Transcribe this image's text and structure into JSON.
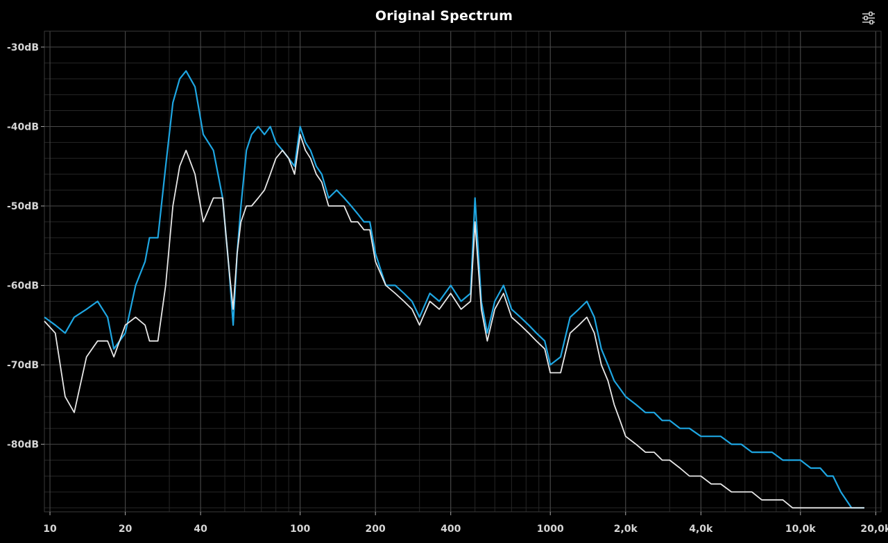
{
  "header": {
    "title": "Original Spectrum",
    "settings_icon": "sliders-icon"
  },
  "colors": {
    "background": "#000000",
    "grid": "#4a4a4a",
    "grid_minor": "#262626",
    "series_blue": "#1ea6e2",
    "series_white": "#e8e8e8"
  },
  "chart_data": {
    "type": "line",
    "title": "Original Spectrum",
    "xlabel": "",
    "ylabel": "",
    "x_scale": "log",
    "xlim": [
      9.5,
      21000
    ],
    "ylim": [
      -88.5,
      -28
    ],
    "grid": true,
    "y_ticks": [
      {
        "value": -30,
        "label": "-30dB"
      },
      {
        "value": -40,
        "label": "-40dB"
      },
      {
        "value": -50,
        "label": "-50dB"
      },
      {
        "value": -60,
        "label": "-60dB"
      },
      {
        "value": -70,
        "label": "-70dB"
      },
      {
        "value": -80,
        "label": "-80dB"
      }
    ],
    "x_ticks": [
      {
        "value": 10,
        "label": "10"
      },
      {
        "value": 20,
        "label": "20"
      },
      {
        "value": 40,
        "label": "40"
      },
      {
        "value": 100,
        "label": "100"
      },
      {
        "value": 200,
        "label": "200"
      },
      {
        "value": 400,
        "label": "400"
      },
      {
        "value": 1000,
        "label": "1000"
      },
      {
        "value": 2000,
        "label": "2,0k"
      },
      {
        "value": 4000,
        "label": "4,0k"
      },
      {
        "value": 10000,
        "label": "10,0k"
      },
      {
        "value": 20000,
        "label": "20,0k"
      }
    ],
    "series": [
      {
        "color": "#1ea6e2",
        "x": [
          9.5,
          10.5,
          11.5,
          12.5,
          14,
          15.5,
          17,
          18,
          20,
          22,
          24,
          25,
          27,
          29,
          31,
          33,
          35,
          38,
          41,
          45,
          49,
          52,
          54,
          56,
          58,
          61,
          64,
          68,
          72,
          76,
          80,
          85,
          90,
          95,
          100,
          105,
          110,
          116,
          122,
          130,
          140,
          150,
          160,
          170,
          180,
          190,
          200,
          220,
          240,
          260,
          280,
          300,
          330,
          360,
          400,
          440,
          480,
          500,
          530,
          560,
          600,
          650,
          700,
          760,
          820,
          880,
          950,
          1000,
          1100,
          1200,
          1300,
          1400,
          1500,
          1600,
          1700,
          1800,
          1900,
          2000,
          2200,
          2400,
          2600,
          2800,
          3000,
          3300,
          3600,
          4000,
          4400,
          4800,
          5300,
          5800,
          6400,
          7000,
          7700,
          8500,
          9300,
          10000,
          11000,
          12000,
          12800,
          13500,
          14500,
          16000,
          18000
        ],
        "y": [
          -64,
          -65,
          -66,
          -64,
          -63,
          -62,
          -64,
          -68,
          -66,
          -60,
          -57,
          -54,
          -54,
          -45,
          -37,
          -34,
          -33,
          -35,
          -41,
          -43,
          -49,
          -58,
          -65,
          -56,
          -50,
          -43,
          -41,
          -40,
          -41,
          -40,
          -42,
          -43,
          -44,
          -45,
          -40,
          -42,
          -43,
          -45,
          -46,
          -49,
          -48,
          -49,
          -50,
          -51,
          -52,
          -52,
          -56,
          -60,
          -60,
          -61,
          -62,
          -64,
          -61,
          -62,
          -60,
          -62,
          -61,
          -49,
          -62,
          -66,
          -62,
          -60,
          -63,
          -64,
          -65,
          -66,
          -67,
          -70,
          -69,
          -64,
          -63,
          -62,
          -64,
          -68,
          -70,
          -72,
          -73,
          -74,
          -75,
          -76,
          -76,
          -77,
          -77,
          -78,
          -78,
          -79,
          -79,
          -79,
          -80,
          -80,
          -81,
          -81,
          -81,
          -82,
          -82,
          -82,
          -83,
          -83,
          -84,
          -84,
          -86,
          -88,
          -88
        ]
      },
      {
        "color": "#e8e8e8",
        "x": [
          9.5,
          10.5,
          11.5,
          12.5,
          14,
          15.5,
          17,
          18,
          20,
          22,
          24,
          25,
          27,
          29,
          31,
          33,
          35,
          38,
          41,
          45,
          49,
          52,
          54,
          56,
          58,
          61,
          64,
          68,
          72,
          76,
          80,
          85,
          90,
          95,
          100,
          105,
          110,
          116,
          122,
          130,
          140,
          150,
          160,
          170,
          180,
          190,
          200,
          220,
          240,
          260,
          280,
          300,
          330,
          360,
          400,
          440,
          480,
          500,
          530,
          560,
          600,
          650,
          700,
          760,
          820,
          880,
          950,
          1000,
          1100,
          1200,
          1300,
          1400,
          1500,
          1600,
          1700,
          1800,
          1900,
          2000,
          2200,
          2400,
          2600,
          2800,
          3000,
          3300,
          3600,
          4000,
          4400,
          4800,
          5300,
          5800,
          6400,
          7000,
          7700,
          8500,
          9300,
          10000,
          11000,
          12000,
          12800,
          13500,
          14500,
          16000,
          18000
        ],
        "y": [
          -64.5,
          -66,
          -74,
          -76,
          -69,
          -67,
          -67,
          -69,
          -65,
          -64,
          -65,
          -67,
          -67,
          -60,
          -50,
          -45,
          -43,
          -46,
          -52,
          -49,
          -49,
          -58,
          -63,
          -56,
          -52,
          -50,
          -50,
          -49,
          -48,
          -46,
          -44,
          -43,
          -44,
          -46,
          -41,
          -43,
          -44,
          -46,
          -47,
          -50,
          -50,
          -50,
          -52,
          -52,
          -53,
          -53,
          -57,
          -60,
          -61,
          -62,
          -63,
          -65,
          -62,
          -63,
          -61,
          -63,
          -62,
          -52,
          -63,
          -67,
          -63,
          -61,
          -64,
          -65,
          -66,
          -67,
          -68,
          -71,
          -71,
          -66,
          -65,
          -64,
          -66,
          -70,
          -72,
          -75,
          -77,
          -79,
          -80,
          -81,
          -81,
          -82,
          -82,
          -83,
          -84,
          -84,
          -85,
          -85,
          -86,
          -86,
          -86,
          -87,
          -87,
          -87,
          -88,
          -88,
          -88,
          -88,
          -88,
          -88,
          -88,
          -88,
          -88
        ]
      }
    ]
  }
}
